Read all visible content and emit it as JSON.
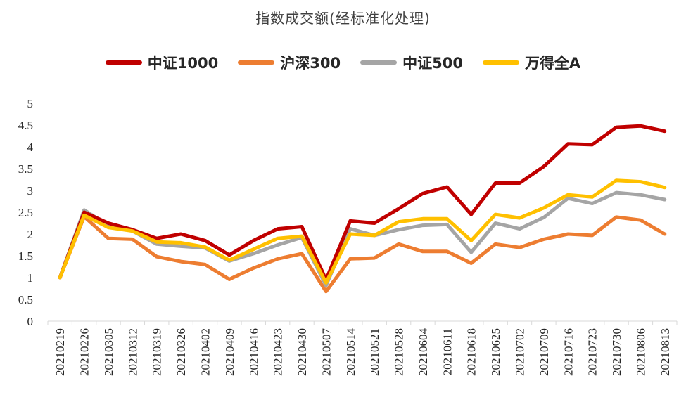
{
  "chart_data": {
    "type": "line",
    "title": "指数成交额(经标准化处理)",
    "xlabel": "",
    "ylabel": "",
    "ylim": [
      0,
      5
    ],
    "yticks": [
      "0",
      "0.5",
      "1",
      "1.5",
      "2",
      "2.5",
      "3",
      "3.5",
      "4",
      "4.5",
      "5"
    ],
    "grid": false,
    "legend_position": "top",
    "x": [
      "20210219",
      "20210226",
      "20210305",
      "20210312",
      "20210319",
      "20210326",
      "20210402",
      "20210409",
      "20210416",
      "20210423",
      "20210430",
      "20210507",
      "20210514",
      "20210521",
      "20210528",
      "20210604",
      "20210611",
      "20210618",
      "20210625",
      "20210702",
      "20210709",
      "20210716",
      "20210723",
      "20210730",
      "20210806",
      "20210813"
    ],
    "series": [
      {
        "name": "中证1000",
        "color": "#C00000",
        "values": [
          1.0,
          2.5,
          2.25,
          2.1,
          1.9,
          2.0,
          1.85,
          1.52,
          1.85,
          2.12,
          2.17,
          0.95,
          2.3,
          2.25,
          2.58,
          2.93,
          3.08,
          2.45,
          3.17,
          3.17,
          3.55,
          4.07,
          4.05,
          4.45,
          4.48,
          4.36
        ]
      },
      {
        "name": "沪深300",
        "color": "#ED7D31",
        "values": [
          1.0,
          2.4,
          1.9,
          1.88,
          1.48,
          1.37,
          1.3,
          0.96,
          1.22,
          1.43,
          1.55,
          0.68,
          1.43,
          1.45,
          1.77,
          1.6,
          1.6,
          1.33,
          1.77,
          1.69,
          1.88,
          2.0,
          1.97,
          2.39,
          2.32,
          2.0
        ]
      },
      {
        "name": "中证500",
        "color": "#A5A5A5",
        "values": [
          1.0,
          2.55,
          2.2,
          2.07,
          1.77,
          1.72,
          1.68,
          1.38,
          1.55,
          1.75,
          1.92,
          0.82,
          2.12,
          1.97,
          2.1,
          2.2,
          2.22,
          1.58,
          2.25,
          2.12,
          2.38,
          2.82,
          2.7,
          2.95,
          2.9,
          2.79
        ]
      },
      {
        "name": "万得全A",
        "color": "#FFC000",
        "values": [
          1.0,
          2.43,
          2.15,
          2.07,
          1.82,
          1.8,
          1.7,
          1.4,
          1.65,
          1.9,
          1.95,
          0.88,
          2.0,
          1.97,
          2.28,
          2.35,
          2.35,
          1.85,
          2.45,
          2.37,
          2.6,
          2.9,
          2.85,
          3.23,
          3.2,
          3.07
        ]
      }
    ]
  }
}
